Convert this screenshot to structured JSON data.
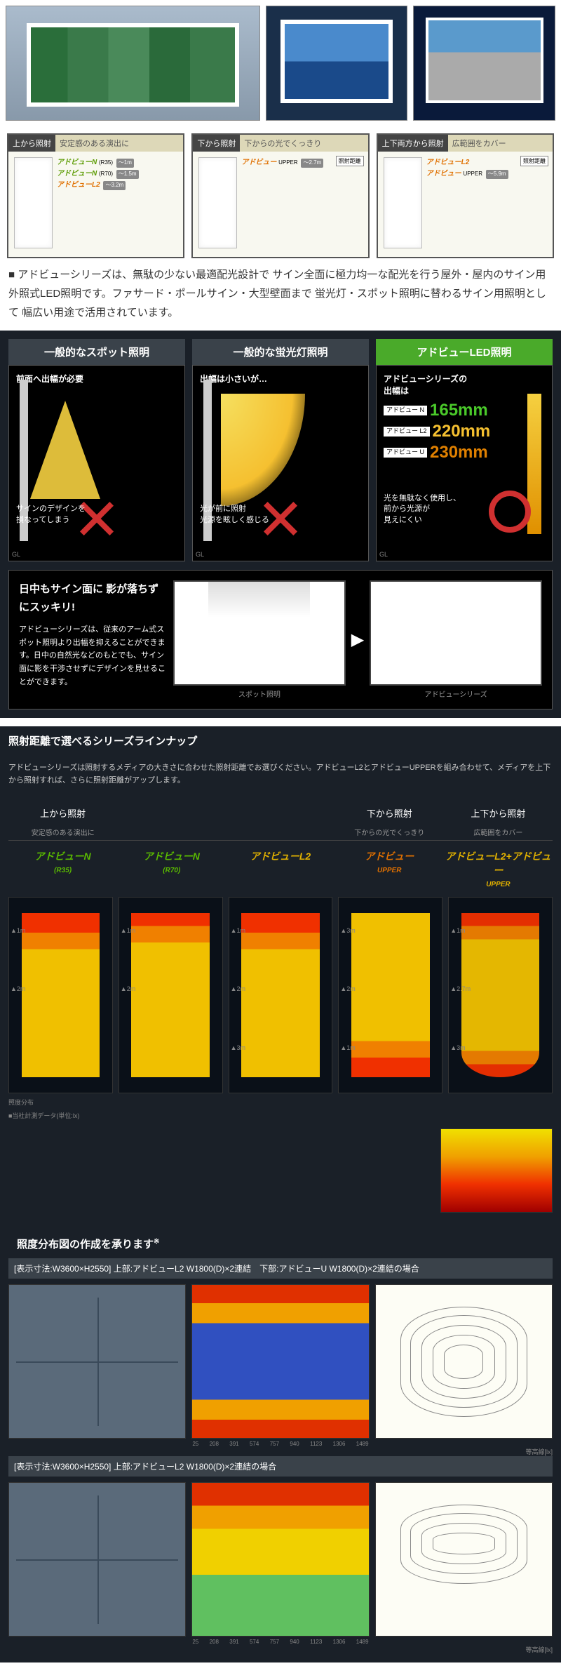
{
  "photos": {
    "count": 3
  },
  "configs": [
    {
      "header_left": "上から照射",
      "header_right": "安定感のある演出に",
      "lines": [
        {
          "brand": "アドビューN",
          "sub": "(R35)",
          "dist": "〜1m",
          "cls": "brand-green"
        },
        {
          "brand": "アドビューN",
          "sub": "(R70)",
          "dist": "〜1.5m",
          "cls": "brand-green"
        },
        {
          "brand": "アドビューL2",
          "sub": "",
          "dist": "〜3.2m",
          "cls": "brand-orange"
        }
      ]
    },
    {
      "header_left": "下から照射",
      "header_right": "下からの光でくっきり",
      "note": "照射距離",
      "lines": [
        {
          "brand": "アドビュー",
          "sub": "UPPER",
          "dist": "〜2.7m",
          "cls": "brand-orange"
        }
      ]
    },
    {
      "header_left": "上下両方から照射",
      "header_right": "広範囲をカバー",
      "note": "照射距離",
      "lines": [
        {
          "brand": "アドビューL2",
          "sub": "",
          "dist": "",
          "cls": "brand-orange"
        },
        {
          "brand": "アドビュー",
          "sub": "UPPER",
          "dist": "〜5.9m",
          "cls": "brand-orange"
        }
      ]
    }
  ],
  "description": "■ アドビューシリーズは、無駄の少ない最適配光設計で サイン全面に極力均一な配光を行う屋外・屋内のサイン用外照式LED照明です。ファサード・ポールサイン・大型壁面まで 蛍光灯・スポット照明に替わるサイン用照明として 幅広い用途で活用されています。",
  "compare": {
    "cols": [
      {
        "head": "一般的なスポット照明",
        "cls": "gray",
        "title": "前面へ出幅が必要",
        "foot": "サインのデザインを\n損なってしまう",
        "type": "spot"
      },
      {
        "head": "一般的な蛍光灯照明",
        "cls": "gray",
        "title": "出幅は小さいが…",
        "foot": "光が前に照射\n光源を眩しく感じる",
        "type": "fluor"
      },
      {
        "head": "アドビューLED照明",
        "cls": "green",
        "title": "アドビューシリーズの\n出幅は",
        "foot": "光を無駄なく使用し、\n前から光源が\n見えにくい",
        "type": "adview",
        "specs": [
          {
            "label": "アドビュー\nN",
            "val": "165mm",
            "cls": ""
          },
          {
            "label": "アドビュー\nL2",
            "val": "220mm",
            "cls": "y"
          },
          {
            "label": "アドビュー\nU",
            "val": "230mm",
            "cls": "o"
          }
        ]
      }
    ],
    "gl": "GL"
  },
  "shadow": {
    "title": "日中もサイン面に\n影が落ちずにスッキリ!",
    "body": "アドビューシリーズは、従来のアーム式スポット照明より出幅を抑えることができます。日中の自然光などのもとでも、サイン面に影を干渉させずにデザインを見せることができます。",
    "cap1": "スポット照明",
    "cap2": "アドビューシリーズ"
  },
  "lineup": {
    "title": "照射距離で選べるシリーズラインナップ",
    "desc": "アドビューシリーズは照射するメディアの大きさに合わせた照射距離でお選びください。アドビューL2とアドビューUPPERを組み合わせて、メディアを上下から照射すれば、さらに照射距離がアップします。",
    "heads": [
      "上から照射",
      "",
      "",
      "下から照射",
      "上下から照射"
    ],
    "subs": [
      "安定感のある演出に",
      "",
      "",
      "下からの光でくっきり",
      "広範囲をカバー"
    ],
    "brands": [
      {
        "t": "アドビューN",
        "s": "(R35)",
        "c": "bg"
      },
      {
        "t": "アドビューN",
        "s": "(R70)",
        "c": "bg"
      },
      {
        "t": "アドビューL2",
        "s": "",
        "c": "by"
      },
      {
        "t": "アドビュー",
        "s": "UPPER",
        "c": "bo"
      },
      {
        "t": "アドビューL2+アドビュー",
        "s": "UPPER",
        "c": "by"
      }
    ],
    "heatmaps": [
      {
        "cls": "hm-a",
        "ticks": [
          "1m",
          "2m"
        ]
      },
      {
        "cls": "hm-b",
        "ticks": [
          "1m",
          "2m"
        ]
      },
      {
        "cls": "hm-a",
        "ticks": [
          "1m",
          "2m",
          "3m"
        ]
      },
      {
        "cls": "hm-c",
        "ticks": [
          "3m",
          "2m",
          "1m"
        ]
      },
      {
        "cls": "hm-e",
        "ticks": [
          "1m",
          "2.7m",
          "3m"
        ]
      }
    ],
    "caption1": "照度分布",
    "caption2": "■当社計測データ(単位:lx)"
  },
  "dist": {
    "title": "照度分布図の作成を承ります",
    "sup": "※",
    "row1_label": "[表示寸法:W3600×H2550] 上部:アドビューL2 W1800(D)×2連結　下部:アドビューU W1800(D)×2連結の場合",
    "row2_label": "[表示寸法:W3600×H2550] 上部:アドビューL2 W1800(D)×2連結の場合",
    "ruler": [
      "25",
      "208",
      "391",
      "574",
      "757",
      "940",
      "1123",
      "1306",
      "1489"
    ],
    "note": "等高線[lx]"
  }
}
